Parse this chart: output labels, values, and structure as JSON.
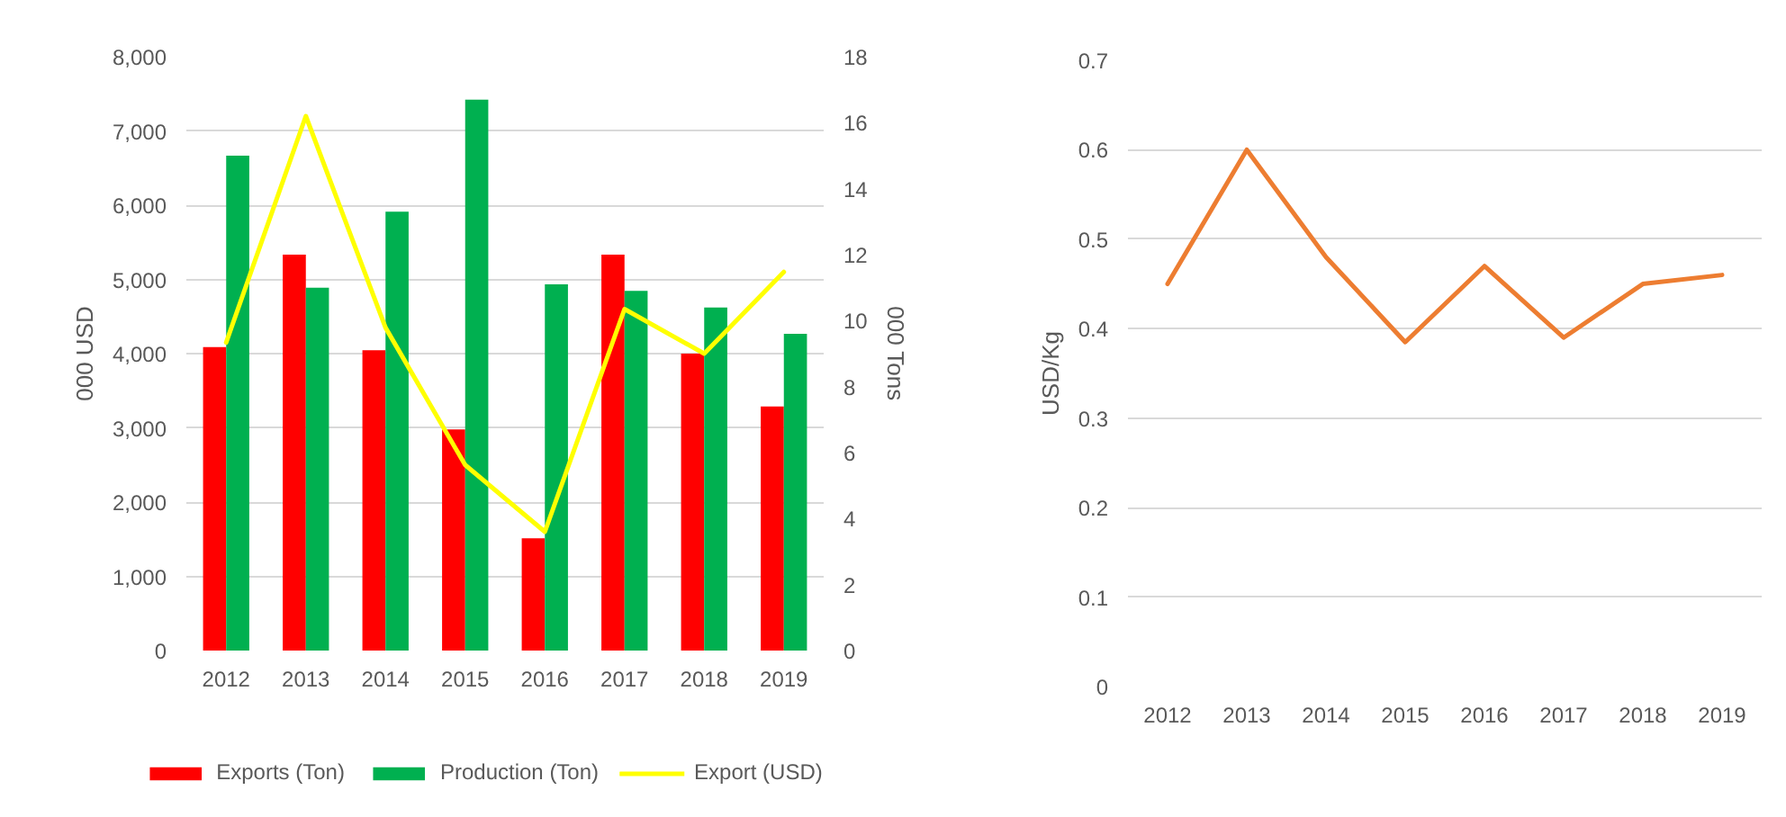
{
  "chart_data": [
    {
      "type": "bar",
      "categories": [
        "2012",
        "2013",
        "2014",
        "2015",
        "2016",
        "2017",
        "2018",
        "2019"
      ],
      "series": [
        {
          "name": "Exports (Ton)",
          "color": "#ff0000",
          "axis": "y2",
          "values": [
            9.2,
            12.0,
            9.1,
            6.7,
            3.4,
            12.0,
            9.0,
            7.4
          ]
        },
        {
          "name": "Production (Ton)",
          "color": "#00b050",
          "axis": "y2",
          "values": [
            15.0,
            11.0,
            13.3,
            16.7,
            11.1,
            10.9,
            10.4,
            9.6
          ]
        },
        {
          "name": "Export (USD)",
          "type": "line",
          "color": "#ffff00",
          "values": [
            4150,
            7200,
            4350,
            2500,
            1600,
            4600,
            4000,
            5100
          ]
        }
      ],
      "ylabel": "000 USD",
      "y2label": "000 Tons",
      "ylim": [
        0,
        8000
      ],
      "yticks": [
        0,
        {
          "value": 1000,
          "label": "1,000"
        },
        {
          "value": 2000,
          "label": "2,000"
        },
        {
          "value": 3000,
          "label": "3,000"
        },
        {
          "value": 4000,
          "label": "4,000"
        },
        {
          "value": 5000,
          "label": "5,000"
        },
        {
          "value": 6000,
          "label": "6,000"
        },
        {
          "value": 7000,
          "label": "7,000"
        },
        {
          "value": 8000,
          "label": "8,000"
        }
      ],
      "y2lim": [
        0,
        18
      ],
      "y2ticks": [
        0,
        2,
        4,
        6,
        8,
        10,
        12,
        14,
        16,
        18
      ],
      "grid": "y",
      "legend": "bottom"
    },
    {
      "type": "line",
      "categories": [
        "2012",
        "2013",
        "2014",
        "2015",
        "2016",
        "2017",
        "2018",
        "2019"
      ],
      "series": [
        {
          "color": "#ed7d31",
          "values": [
            0.45,
            0.6,
            0.48,
            0.385,
            0.47,
            0.39,
            0.45,
            0.46
          ]
        }
      ],
      "ylabel": "USD/Kg",
      "ylim": [
        0,
        0.7
      ],
      "yticks": [
        0,
        0.1,
        0.2,
        0.3,
        0.4,
        0.5,
        0.6,
        0.7
      ],
      "grid": "y"
    }
  ]
}
